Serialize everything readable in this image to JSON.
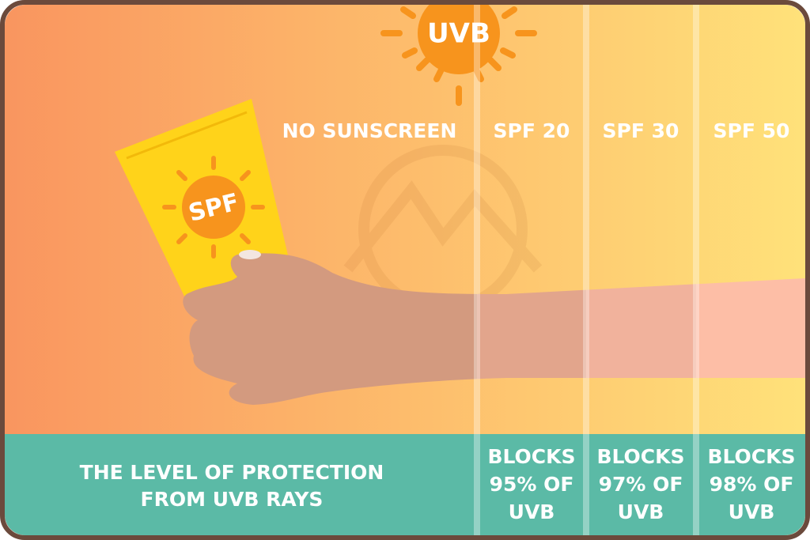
{
  "sun_label": "UVB",
  "tube_label": "SPF",
  "columns": [
    "NO SUNSCREEN",
    "SPF 20",
    "SPF 30",
    "SPF 50"
  ],
  "footer_label": [
    "THE LEVEL OF PROTECTION",
    "FROM UVB RAYS"
  ],
  "protection": [
    [
      "BLOCKS",
      "95% OF",
      "UVB"
    ],
    [
      "BLOCKS",
      "97% OF",
      "UVB"
    ],
    [
      "BLOCKS",
      "98% OF",
      "UVB"
    ]
  ]
}
